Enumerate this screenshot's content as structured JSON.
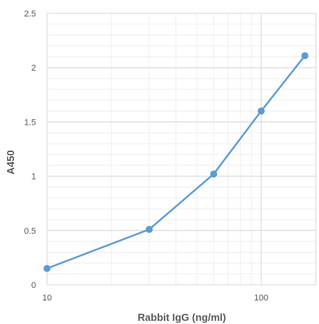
{
  "chart_data": {
    "type": "line",
    "title": "",
    "xlabel": "Rabbit IgG (ng/ml)",
    "ylabel": "A450",
    "x_scale": "log",
    "xlim": [
      10,
      180
    ],
    "ylim": [
      0,
      2.5
    ],
    "x_ticks": [
      10,
      100
    ],
    "y_ticks": [
      0,
      0.5,
      1,
      1.5,
      2,
      2.5
    ],
    "grid": true,
    "series": [
      {
        "x": [
          10,
          30,
          60,
          100,
          160
        ],
        "values": [
          0.15,
          0.51,
          1.02,
          1.6,
          2.11
        ],
        "color": "#5b9bd5"
      }
    ]
  }
}
